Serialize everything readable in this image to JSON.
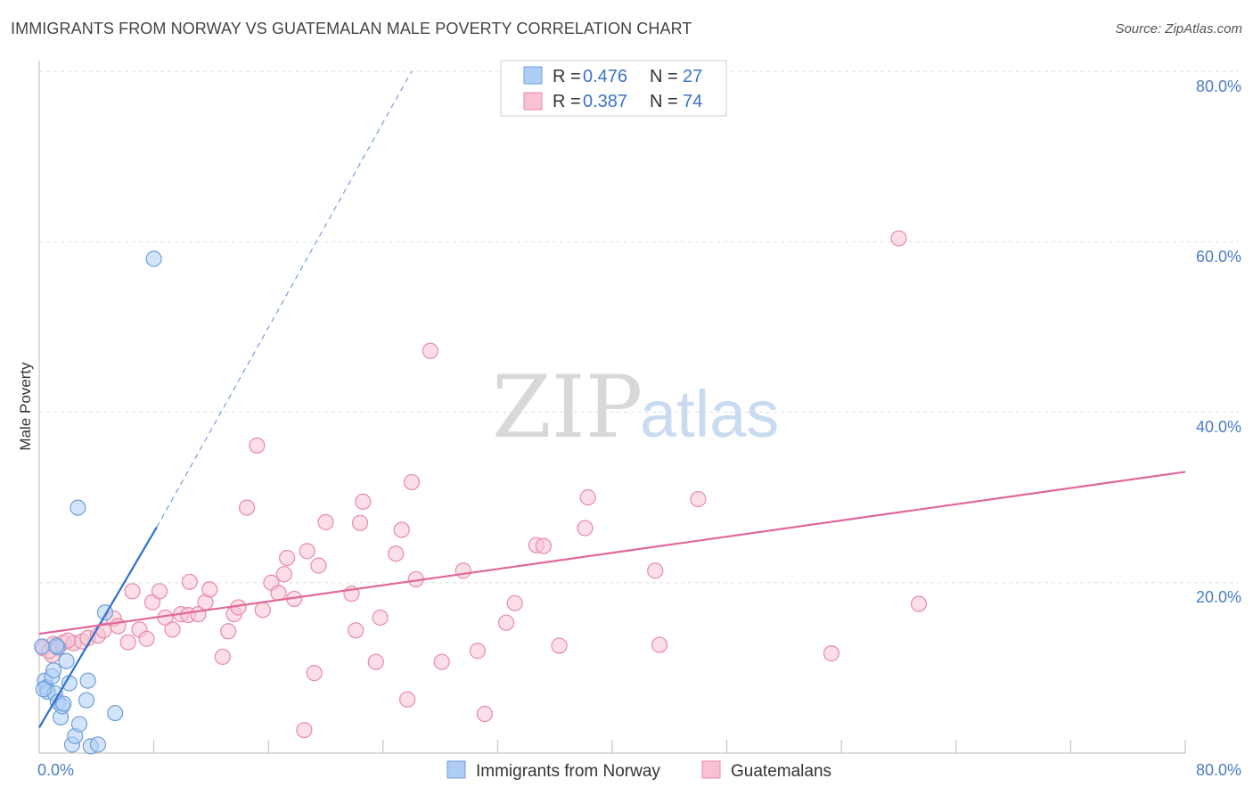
{
  "title": "IMMIGRANTS FROM NORWAY VS GUATEMALAN MALE POVERTY CORRELATION CHART",
  "source": "Source: ZipAtlas.com",
  "watermark": {
    "zip": "ZIP",
    "atlas": "atlas"
  },
  "colors": {
    "norway_fill": "#aecdf5",
    "norway_stroke": "#6f9fd8",
    "norway_line": "#2f6fcc",
    "guatemala_fill": "#f8c2d2",
    "guatemala_stroke": "#e88aa8",
    "guatemala_line": "#e0679a",
    "grid": "#dddddd",
    "axis_label": "#4a7cc7"
  },
  "legend": {
    "rows": [
      {
        "r_label": "R =",
        "r_value": "0.476",
        "n_label": "N =",
        "n_value": "27"
      },
      {
        "r_label": "R =",
        "r_value": "0.387",
        "n_label": "N =",
        "n_value": "74"
      }
    ]
  },
  "chart_data": {
    "type": "scatter",
    "title": "IMMIGRANTS FROM NORWAY VS GUATEMALAN MALE POVERTY CORRELATION CHART",
    "xlabel": "",
    "ylabel": "Male Poverty",
    "xlim": [
      0,
      80
    ],
    "ylim": [
      0,
      80
    ],
    "x_tick_labels": [
      "0.0%",
      "80.0%"
    ],
    "y_tick_labels": [
      "20.0%",
      "40.0%",
      "60.0%",
      "80.0%"
    ],
    "y_ticks": [
      20,
      40,
      60,
      80
    ],
    "series": [
      {
        "name": "Immigrants from Norway",
        "r": 0.476,
        "n": 27,
        "trend": {
          "x0": 0,
          "y0": 3.0,
          "x1": 8.2,
          "y1": 26.5,
          "dash_to_x": 26,
          "dash_to_y": 80
        },
        "points": [
          [
            0.2,
            12.5
          ],
          [
            0.4,
            8.5
          ],
          [
            0.5,
            7.7
          ],
          [
            0.6,
            7.2
          ],
          [
            0.9,
            9.0
          ],
          [
            1.0,
            9.7
          ],
          [
            1.1,
            7.0
          ],
          [
            1.3,
            6.0
          ],
          [
            1.3,
            12.4
          ],
          [
            1.5,
            4.2
          ],
          [
            1.6,
            5.5
          ],
          [
            1.7,
            5.8
          ],
          [
            1.9,
            10.8
          ],
          [
            2.1,
            8.2
          ],
          [
            2.3,
            1.0
          ],
          [
            2.5,
            2.0
          ],
          [
            2.7,
            28.8
          ],
          [
            2.8,
            3.4
          ],
          [
            3.3,
            6.2
          ],
          [
            3.4,
            8.5
          ],
          [
            3.6,
            0.8
          ],
          [
            4.1,
            1.0
          ],
          [
            4.6,
            16.5
          ],
          [
            5.3,
            4.7
          ],
          [
            8.0,
            58.0
          ],
          [
            0.3,
            7.5
          ],
          [
            1.2,
            12.6
          ]
        ]
      },
      {
        "name": "Guatemalans",
        "r": 0.387,
        "n": 74,
        "trend": {
          "x0": 0,
          "y0": 14.0,
          "x1": 80,
          "y1": 33.0
        },
        "points": [
          [
            0.3,
            12.3
          ],
          [
            0.9,
            11.5
          ],
          [
            1.0,
            12.8
          ],
          [
            1.3,
            12.5
          ],
          [
            1.7,
            13.0
          ],
          [
            2.4,
            12.9
          ],
          [
            3.0,
            13.1
          ],
          [
            3.4,
            13.5
          ],
          [
            4.1,
            13.8
          ],
          [
            4.5,
            14.4
          ],
          [
            5.2,
            15.8
          ],
          [
            5.5,
            14.9
          ],
          [
            6.2,
            13.0
          ],
          [
            6.5,
            19.0
          ],
          [
            7.0,
            14.5
          ],
          [
            7.5,
            13.4
          ],
          [
            7.9,
            17.7
          ],
          [
            8.4,
            19.0
          ],
          [
            8.8,
            15.9
          ],
          [
            9.3,
            14.5
          ],
          [
            9.9,
            16.3
          ],
          [
            10.4,
            16.2
          ],
          [
            10.5,
            20.1
          ],
          [
            11.1,
            16.3
          ],
          [
            11.6,
            17.7
          ],
          [
            11.9,
            19.2
          ],
          [
            12.8,
            11.3
          ],
          [
            13.2,
            14.3
          ],
          [
            13.6,
            16.3
          ],
          [
            13.9,
            17.1
          ],
          [
            14.5,
            28.8
          ],
          [
            15.2,
            36.1
          ],
          [
            15.6,
            16.8
          ],
          [
            16.2,
            20.0
          ],
          [
            16.7,
            18.8
          ],
          [
            17.1,
            21.0
          ],
          [
            17.3,
            22.9
          ],
          [
            17.8,
            18.1
          ],
          [
            18.5,
            2.7
          ],
          [
            18.7,
            23.7
          ],
          [
            19.2,
            9.4
          ],
          [
            19.5,
            22.0
          ],
          [
            20.0,
            27.1
          ],
          [
            21.8,
            18.7
          ],
          [
            22.1,
            14.4
          ],
          [
            22.4,
            27.0
          ],
          [
            22.6,
            29.5
          ],
          [
            23.5,
            10.7
          ],
          [
            23.8,
            15.9
          ],
          [
            24.9,
            23.4
          ],
          [
            25.3,
            26.2
          ],
          [
            25.7,
            6.3
          ],
          [
            26.0,
            31.8
          ],
          [
            26.3,
            20.4
          ],
          [
            27.3,
            47.2
          ],
          [
            28.1,
            10.7
          ],
          [
            29.6,
            21.4
          ],
          [
            30.6,
            12.0
          ],
          [
            31.1,
            4.6
          ],
          [
            32.6,
            15.3
          ],
          [
            33.2,
            17.6
          ],
          [
            34.7,
            24.4
          ],
          [
            35.2,
            24.3
          ],
          [
            36.3,
            12.6
          ],
          [
            38.1,
            26.4
          ],
          [
            38.3,
            30.0
          ],
          [
            43.0,
            21.4
          ],
          [
            43.3,
            12.7
          ],
          [
            46.0,
            29.8
          ],
          [
            55.3,
            11.7
          ],
          [
            60.0,
            60.4
          ],
          [
            61.4,
            17.5
          ],
          [
            0.7,
            12.0
          ],
          [
            2.0,
            13.2
          ]
        ]
      }
    ],
    "legend_position": "top-center",
    "bottom_legend": [
      "Immigrants from Norway",
      "Guatemalans"
    ]
  }
}
